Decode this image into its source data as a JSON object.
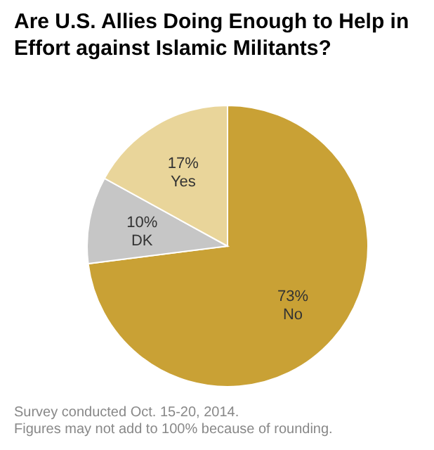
{
  "chart_data": {
    "type": "pie",
    "title": "Are U.S. Allies Doing Enough to Help in Effort against Islamic Militants?",
    "categories": [
      "No",
      "DK",
      "Yes"
    ],
    "values": [
      73,
      10,
      17
    ],
    "value_labels": [
      "73%",
      "10%",
      "17%"
    ],
    "colors": [
      "#c9a135",
      "#c6c6c6",
      "#e9d59a"
    ],
    "annotations": [
      "Survey conducted Oct. 15-20, 2014.",
      "Figures may not add to 100% because of rounding."
    ]
  }
}
